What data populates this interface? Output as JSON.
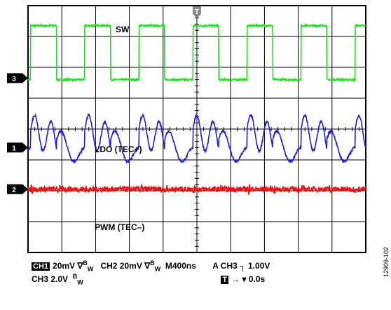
{
  "chart_data": {
    "type": "line",
    "grid": true,
    "divisions": {
      "x": 10,
      "y": 8
    },
    "time_per_div": "400ns",
    "labels": {
      "sw": "SW",
      "ldo": "LDO (TEC+)",
      "pwm": "PWM (TEC–)"
    },
    "series": [
      {
        "name": "SW",
        "channel_marker": "3",
        "color": "#22dd22",
        "period_div": 1.6,
        "duty": 0.48,
        "phase_div": 0.08,
        "high_div": 1.7,
        "low_div": -0.05
      },
      {
        "name": "LDO (TEC+)",
        "channel_marker": "1",
        "color": "#1f1fdd",
        "offset_div": 0.05,
        "amplitude_div": 0.95
      },
      {
        "name": "PWM (TEC–)",
        "channel_marker": "2",
        "color": "#ee1111",
        "offset_div": 0.0,
        "amplitude_div": 0.15
      }
    ],
    "trigger_marker": "T"
  },
  "status": {
    "ch1_box": "CH1",
    "ch1_scale": "20mV",
    "bw_symbol": "∇",
    "bw_b": "B",
    "bw_w": "W",
    "ch2": "CH2",
    "ch2_scale": "20mV",
    "timebase": "M400ns",
    "trigger": "A  CH3",
    "trigger_slope": "┐",
    "trigger_level": "1.00V",
    "ch3": "CH3",
    "ch3_scale": "2.0V",
    "t_box": "T",
    "t_offset": "→ ▾ 0.0s"
  },
  "figure_id": "12909-102"
}
